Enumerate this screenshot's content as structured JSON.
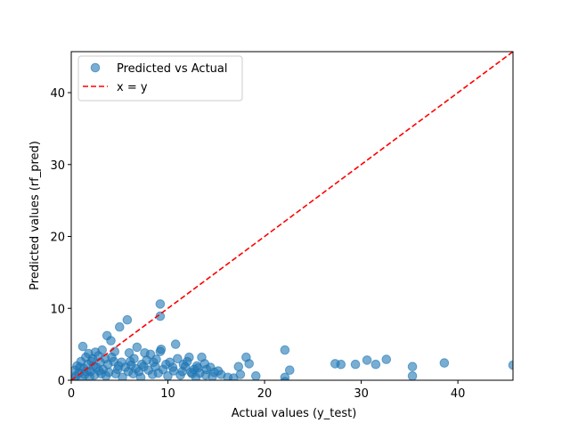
{
  "chart_data": {
    "type": "scatter",
    "xlabel": "Actual values (y_test)",
    "ylabel": "Predicted values (rf_pred)",
    "xlim": [
      0,
      45.7
    ],
    "ylim": [
      0,
      45.7
    ],
    "xticks": [
      0,
      10,
      20,
      30,
      40
    ],
    "yticks": [
      0,
      10,
      20,
      30,
      40
    ],
    "grid": false,
    "legend_position": "upper-left",
    "colors": {
      "points": "#1f77b4",
      "reference_line": "#ff0000"
    },
    "series": [
      {
        "name": "Predicted vs Actual",
        "marker": "circle",
        "points": [
          [
            9.2,
            10.6
          ],
          [
            9.2,
            8.9
          ],
          [
            5.8,
            8.4
          ],
          [
            5.0,
            7.4
          ],
          [
            3.7,
            6.2
          ],
          [
            4.1,
            5.5
          ],
          [
            1.2,
            4.7
          ],
          [
            6.8,
            4.6
          ],
          [
            10.8,
            5.0
          ],
          [
            9.3,
            4.3
          ],
          [
            9.2,
            4.0
          ],
          [
            3.2,
            4.2
          ],
          [
            4.5,
            4.0
          ],
          [
            22.1,
            4.2
          ],
          [
            2.5,
            3.9
          ],
          [
            1.8,
            3.7
          ],
          [
            6.0,
            3.8
          ],
          [
            7.6,
            3.8
          ],
          [
            8.2,
            3.6
          ],
          [
            18.1,
            3.2
          ],
          [
            13.5,
            3.2
          ],
          [
            11.0,
            3.0
          ],
          [
            12.2,
            3.2
          ],
          [
            32.6,
            2.9
          ],
          [
            30.6,
            2.8
          ],
          [
            27.3,
            2.3
          ],
          [
            27.9,
            2.2
          ],
          [
            29.4,
            2.2
          ],
          [
            31.5,
            2.2
          ],
          [
            38.6,
            2.4
          ],
          [
            45.7,
            2.1
          ],
          [
            35.3,
            1.9
          ],
          [
            35.3,
            0.6
          ],
          [
            22.6,
            1.4
          ],
          [
            18.4,
            2.3
          ],
          [
            17.3,
            1.9
          ],
          [
            17.5,
            0.8
          ],
          [
            19.1,
            0.6
          ],
          [
            16.2,
            0.4
          ],
          [
            22.1,
            0.4
          ],
          [
            22.1,
            -0.2
          ],
          [
            16.8,
            0.3
          ],
          [
            14.8,
            1.1
          ],
          [
            15.5,
            0.8
          ],
          [
            10.0,
            0.6
          ],
          [
            7.2,
            0.4
          ],
          [
            12.7,
            1.5
          ],
          [
            13.0,
            2.0
          ],
          [
            11.5,
            1.2
          ],
          [
            12.5,
            0.9
          ],
          [
            14.0,
            1.5
          ],
          [
            9.8,
            2.2
          ],
          [
            10.5,
            1.8
          ],
          [
            8.5,
            2.5
          ],
          [
            7.8,
            2.8
          ],
          [
            6.5,
            3.0
          ],
          [
            6.2,
            2.1
          ],
          [
            5.2,
            2.5
          ],
          [
            4.8,
            1.5
          ],
          [
            4.2,
            3.2
          ],
          [
            3.5,
            3.0
          ],
          [
            3.0,
            2.5
          ],
          [
            2.8,
            3.4
          ],
          [
            2.2,
            3.0
          ],
          [
            1.5,
            3.2
          ],
          [
            1.0,
            2.6
          ],
          [
            0.6,
            2.0
          ],
          [
            0.4,
            1.4
          ],
          [
            0.8,
            1.0
          ],
          [
            1.4,
            0.8
          ],
          [
            2.0,
            1.2
          ],
          [
            2.6,
            1.8
          ],
          [
            3.3,
            1.5
          ],
          [
            3.8,
            2.2
          ],
          [
            4.4,
            2.6
          ],
          [
            5.6,
            1.8
          ],
          [
            5.9,
            1.2
          ],
          [
            6.7,
            1.6
          ],
          [
            7.3,
            2.2
          ],
          [
            8.0,
            1.4
          ],
          [
            8.7,
            1.9
          ],
          [
            9.5,
            1.5
          ],
          [
            10.2,
            2.5
          ],
          [
            11.8,
            1.9
          ],
          [
            12.0,
            2.6
          ],
          [
            13.3,
            1.0
          ],
          [
            13.8,
            2.3
          ],
          [
            14.4,
            1.8
          ],
          [
            15.2,
            1.3
          ],
          [
            1.1,
            0.3
          ],
          [
            1.9,
            0.5
          ],
          [
            2.4,
            0.7
          ],
          [
            3.1,
            0.9
          ],
          [
            0.2,
            0.2
          ],
          [
            0.5,
            0.6
          ],
          [
            1.3,
            1.6
          ],
          [
            1.7,
            2.2
          ],
          [
            2.1,
            2.6
          ],
          [
            2.9,
            1.3
          ],
          [
            3.6,
            0.6
          ],
          [
            4.6,
            0.9
          ],
          [
            5.3,
            0.4
          ],
          [
            6.4,
            0.9
          ],
          [
            7.0,
            1.2
          ],
          [
            8.4,
            0.8
          ],
          [
            9.0,
            1.0
          ],
          [
            10.6,
            1.3
          ],
          [
            11.3,
            0.7
          ],
          [
            12.9,
            0.4
          ],
          [
            13.9,
            0.7
          ],
          [
            14.6,
            0.5
          ],
          [
            1.6,
            1.2
          ],
          [
            2.3,
            2.0
          ],
          [
            0.9,
            1.8
          ],
          [
            3.9,
            1.1
          ],
          [
            4.9,
            2.0
          ],
          [
            6.1,
            2.6
          ],
          [
            7.5,
            1.9
          ],
          [
            8.8,
            2.9
          ],
          [
            11.6,
            2.2
          ],
          [
            13.1,
            1.7
          ],
          [
            12.4,
            1.1
          ]
        ]
      },
      {
        "name": "x = y",
        "style": "dashed",
        "points": [
          [
            0,
            0
          ],
          [
            45.7,
            45.7
          ]
        ]
      }
    ]
  }
}
